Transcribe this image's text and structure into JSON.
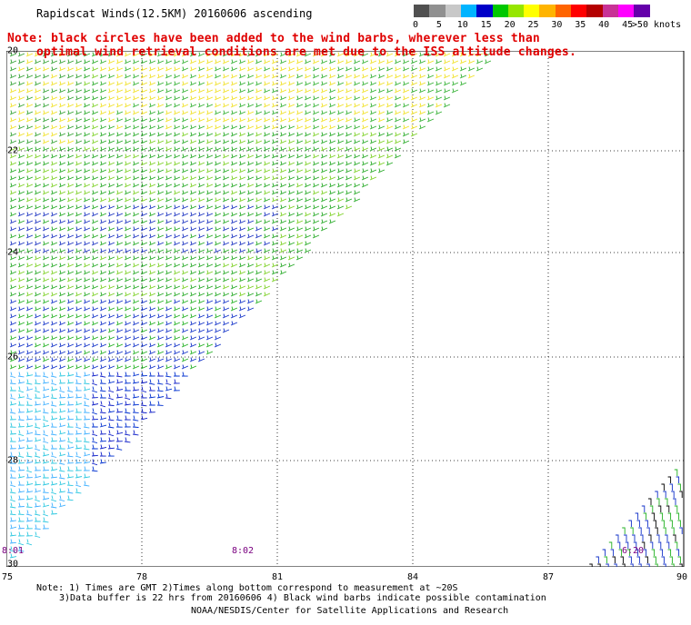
{
  "title": "Rapidscat Winds(12.5KM) 20160606 ascending",
  "notes": {
    "line1": "Note: black circles have been added to the wind barbs, wherever less than",
    "line2": "optimal wind retrieval conditions are met due to the ISS altitude changes."
  },
  "legend": {
    "colors": [
      "#505050",
      "#909090",
      "#c8c8c8",
      "#00b4ff",
      "#0000c8",
      "#00c800",
      "#96e600",
      "#ffff00",
      "#ffb400",
      "#ff6400",
      "#ff0000",
      "#b40000",
      "#c83296",
      "#ff00ff",
      "#6400aa"
    ],
    "ticks": [
      "0",
      "5",
      "10",
      "15",
      "20",
      "25",
      "30",
      "35",
      "40",
      "45",
      ">50 knots"
    ]
  },
  "axes": {
    "lat_labels": [
      "20",
      "22",
      "24",
      "26",
      "28",
      "30"
    ],
    "lon_labels": [
      "75",
      "78",
      "81",
      "84",
      "87",
      "90"
    ]
  },
  "time_labels": {
    "left": "8:01",
    "middle": "8:02",
    "right": "6:20"
  },
  "footer": {
    "line1": "Note: 1) Times are GMT 2)Times along bottom correspond to measurement at ~20S",
    "line2": "3)Data buffer is 22 hrs from 20160606 4) Black wind barbs indicate possible contamination",
    "line3": "NOAA/NESDIS/Center for Satellite Applications and Research"
  }
}
